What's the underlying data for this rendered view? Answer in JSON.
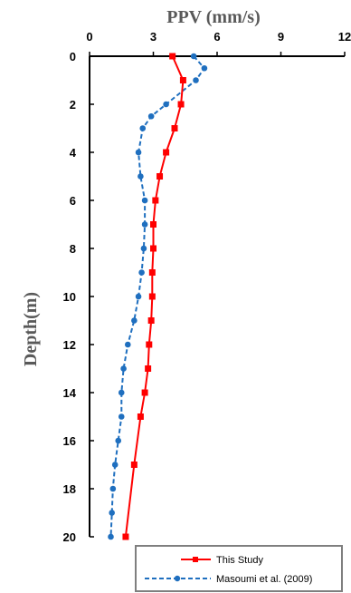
{
  "chart_data": {
    "type": "line",
    "title": "",
    "xlabel": "PPV (mm/s)",
    "ylabel": "Depth(m)",
    "xlim": [
      0,
      12
    ],
    "ylim": [
      0,
      20
    ],
    "y_reversed": true,
    "x_axis_position": "top",
    "x_ticks": [
      0,
      3,
      6,
      9,
      12
    ],
    "y_ticks": [
      0,
      2,
      4,
      6,
      8,
      10,
      12,
      14,
      16,
      18,
      20
    ],
    "grid": false,
    "legend_position": "bottom-right",
    "series": [
      {
        "name": "This Study",
        "color": "#ff0000",
        "line_style": "solid",
        "marker": "square",
        "points": [
          {
            "x": 3.9,
            "y": 0
          },
          {
            "x": 4.4,
            "y": 1
          },
          {
            "x": 4.3,
            "y": 2
          },
          {
            "x": 4.0,
            "y": 3
          },
          {
            "x": 3.6,
            "y": 4
          },
          {
            "x": 3.3,
            "y": 5
          },
          {
            "x": 3.1,
            "y": 6
          },
          {
            "x": 3.0,
            "y": 7
          },
          {
            "x": 3.0,
            "y": 8
          },
          {
            "x": 2.95,
            "y": 9
          },
          {
            "x": 2.95,
            "y": 10
          },
          {
            "x": 2.9,
            "y": 11
          },
          {
            "x": 2.8,
            "y": 12
          },
          {
            "x": 2.75,
            "y": 13
          },
          {
            "x": 2.6,
            "y": 14
          },
          {
            "x": 2.4,
            "y": 15
          },
          {
            "x": 2.1,
            "y": 17
          },
          {
            "x": 1.7,
            "y": 20
          }
        ]
      },
      {
        "name": "Masoumi et al. (2009)",
        "color": "#1f6fbf",
        "line_style": "dashed",
        "marker": "circle",
        "points": [
          {
            "x": 4.9,
            "y": 0
          },
          {
            "x": 5.4,
            "y": 0.5
          },
          {
            "x": 5.0,
            "y": 1
          },
          {
            "x": 3.6,
            "y": 2
          },
          {
            "x": 2.9,
            "y": 2.5
          },
          {
            "x": 2.5,
            "y": 3
          },
          {
            "x": 2.3,
            "y": 4
          },
          {
            "x": 2.4,
            "y": 5
          },
          {
            "x": 2.6,
            "y": 6
          },
          {
            "x": 2.6,
            "y": 7
          },
          {
            "x": 2.55,
            "y": 8
          },
          {
            "x": 2.45,
            "y": 9
          },
          {
            "x": 2.3,
            "y": 10
          },
          {
            "x": 2.1,
            "y": 11
          },
          {
            "x": 1.8,
            "y": 12
          },
          {
            "x": 1.6,
            "y": 13
          },
          {
            "x": 1.5,
            "y": 14
          },
          {
            "x": 1.5,
            "y": 15
          },
          {
            "x": 1.35,
            "y": 16
          },
          {
            "x": 1.2,
            "y": 17
          },
          {
            "x": 1.1,
            "y": 18
          },
          {
            "x": 1.05,
            "y": 19
          },
          {
            "x": 1.0,
            "y": 20
          }
        ]
      }
    ]
  }
}
